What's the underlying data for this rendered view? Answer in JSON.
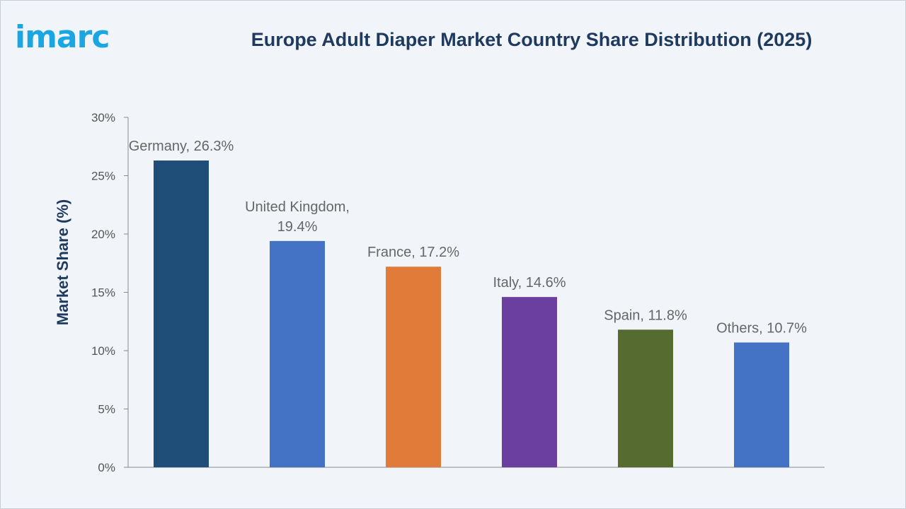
{
  "logo": {
    "text": "imarc"
  },
  "chart_data": {
    "type": "bar",
    "title": "Europe Adult Diaper Market Country Share Distribution (2025)",
    "xlabel": "",
    "ylabel": "Market Share (%)",
    "ylim": [
      0,
      30
    ],
    "yticks": [
      0,
      5,
      10,
      15,
      20,
      25,
      30
    ],
    "ytick_labels": [
      "0%",
      "5%",
      "10%",
      "15%",
      "20%",
      "25%",
      "30%"
    ],
    "grid": false,
    "categories": [
      "Germany",
      "United Kingdom",
      "France",
      "Italy",
      "Spain",
      "Others"
    ],
    "values": [
      26.3,
      19.4,
      17.2,
      14.6,
      11.8,
      10.7
    ],
    "data_labels": [
      [
        "Germany, 26.3%"
      ],
      [
        "United Kingdom,",
        "19.4%"
      ],
      [
        "France, 17.2%"
      ],
      [
        "Italy, 14.6%"
      ],
      [
        "Spain, 11.8%"
      ],
      [
        "Others, 10.7%"
      ]
    ],
    "colors": [
      "#1f4e79",
      "#4472c4",
      "#e07b39",
      "#6b3fa0",
      "#556b2f",
      "#4472c4"
    ]
  }
}
